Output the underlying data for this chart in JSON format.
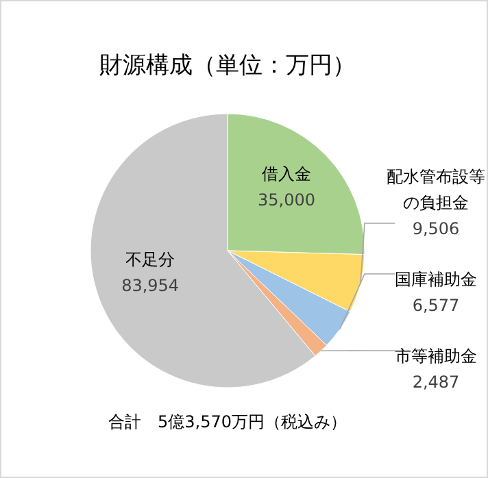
{
  "chart_data": {
    "type": "pie",
    "title": "財源構成（単位：万円）",
    "categories": [
      "借入金",
      "配水管布設等の負担金",
      "国庫補助金",
      "市等補助金",
      "不足分"
    ],
    "values": [
      35000,
      9506,
      6577,
      2487,
      83954
    ],
    "value_labels": [
      "35,000",
      "9,506",
      "6,577",
      "2,487",
      "83,954"
    ],
    "colors": [
      "#a9d18e",
      "#ffd966",
      "#9dc3e6",
      "#f4b183",
      "#c9c9c9"
    ],
    "annotations": [
      "合計　5億3,570万円（税込み）"
    ]
  }
}
